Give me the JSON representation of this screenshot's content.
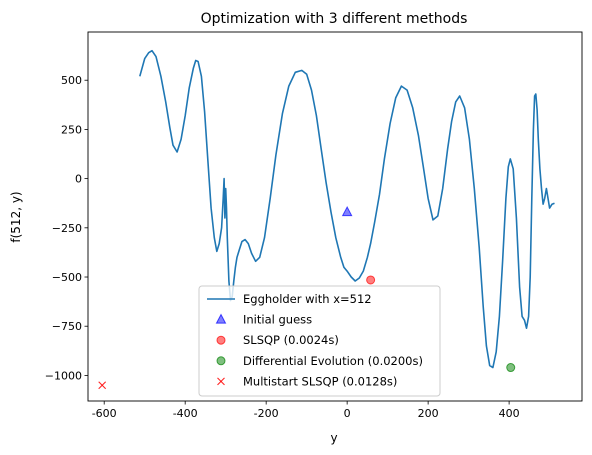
{
  "chart_data": {
    "type": "line",
    "title": "Optimization with 3 different methods",
    "xlabel": "y",
    "ylabel": "f(512, y)",
    "xlim": [
      -640,
      580
    ],
    "ylim": [
      -1130,
      745
    ],
    "xticks": [
      -600,
      -400,
      -200,
      0,
      200,
      400
    ],
    "yticks": [
      -1000,
      -750,
      -500,
      -250,
      0,
      250,
      500
    ],
    "grid": false,
    "legend_position": "lower center",
    "series": [
      {
        "name": "Eggholder with x=512",
        "kind": "line",
        "color": "#1f77b4",
        "x": [
          -512,
          -500,
          -490,
          -482,
          -472,
          -460,
          -448,
          -438,
          -430,
          -420,
          -410,
          -400,
          -390,
          -380,
          -374,
          -368,
          -360,
          -352,
          -344,
          -336,
          -328,
          -322,
          -316,
          -310,
          -306,
          -304,
          -302,
          -300,
          -298,
          -296,
          -292,
          -288,
          -284,
          -280,
          -276,
          -272,
          -266,
          -260,
          -252,
          -244,
          -236,
          -226,
          -216,
          -204,
          -190,
          -176,
          -160,
          -144,
          -128,
          -112,
          -100,
          -88,
          -76,
          -64,
          -52,
          -40,
          -28,
          -16,
          -8,
          0,
          10,
          20,
          30,
          40,
          50,
          58,
          68,
          80,
          92,
          106,
          120,
          134,
          148,
          162,
          176,
          188,
          200,
          212,
          224,
          236,
          248,
          258,
          268,
          278,
          290,
          302,
          314,
          326,
          336,
          344,
          352,
          360,
          368,
          376,
          384,
          392,
          398,
          403,
          410,
          418,
          426,
          432,
          438,
          443,
          448,
          452,
          456,
          460,
          463,
          466,
          469,
          472,
          476,
          480,
          484,
          488,
          492,
          496,
          500,
          506,
          512
        ],
        "y": [
          520,
          610,
          640,
          650,
          620,
          520,
          390,
          260,
          170,
          135,
          200,
          320,
          460,
          560,
          600,
          595,
          520,
          340,
          90,
          -150,
          -300,
          -370,
          -330,
          -250,
          -100,
          0,
          -200,
          -50,
          -150,
          -300,
          -520,
          -620,
          -600,
          -520,
          -450,
          -400,
          -360,
          -320,
          -310,
          -330,
          -380,
          -420,
          -400,
          -300,
          -100,
          120,
          330,
          470,
          540,
          550,
          530,
          450,
          320,
          150,
          -20,
          -170,
          -300,
          -400,
          -450,
          -470,
          -500,
          -520,
          -505,
          -470,
          -400,
          -330,
          -220,
          -80,
          100,
          280,
          410,
          470,
          450,
          360,
          220,
          60,
          -100,
          -210,
          -190,
          -50,
          150,
          290,
          390,
          420,
          360,
          200,
          -50,
          -350,
          -650,
          -850,
          -950,
          -960,
          -880,
          -700,
          -420,
          -100,
          60,
          100,
          50,
          -200,
          -550,
          -700,
          -720,
          -760,
          -700,
          -500,
          -100,
          250,
          420,
          430,
          350,
          200,
          50,
          -50,
          -130,
          -100,
          -50,
          -100,
          -150,
          -130,
          -125
        ]
      },
      {
        "name": "Initial guess",
        "kind": "marker",
        "marker": "triangle",
        "color": "#0000ff",
        "x": [
          0
        ],
        "y": [
          -170
        ]
      },
      {
        "name": "SLSQP (0.0024s)",
        "kind": "marker",
        "marker": "circle",
        "color": "#ff0000",
        "x": [
          58
        ],
        "y": [
          -515
        ]
      },
      {
        "name": "Differential Evolution (0.0200s)",
        "kind": "marker",
        "marker": "circle",
        "color": "#008000",
        "x": [
          404
        ],
        "y": [
          -960
        ]
      },
      {
        "name": "Multistart SLSQP (0.0128s)",
        "kind": "marker",
        "marker": "x",
        "color": "#ff0000",
        "x": [
          -605
        ],
        "y": [
          -1050
        ]
      }
    ]
  }
}
